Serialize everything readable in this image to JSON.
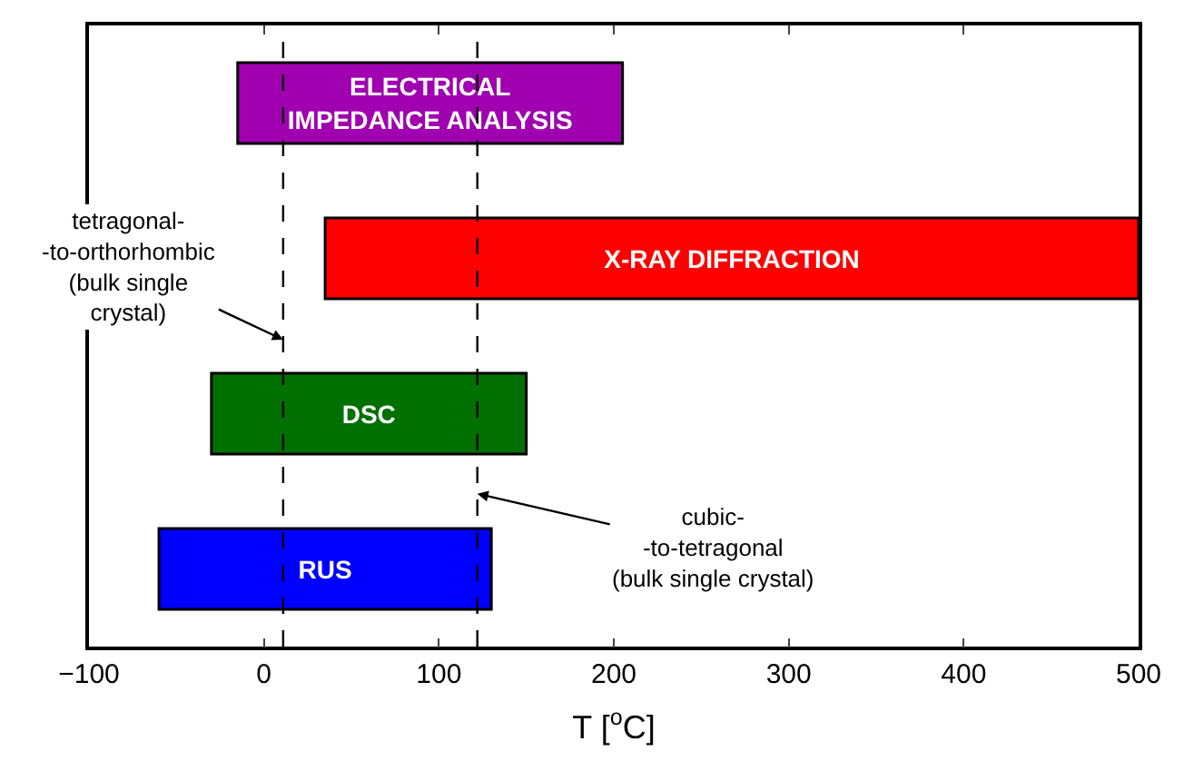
{
  "chart_data": {
    "type": "bar",
    "orientation": "horizontal",
    "xlabel": "T [$^{o}$C]",
    "categories": [
      "ELECTRICAL\nIMPEDANCE ANALYSIS",
      "X-RAY DIFFRACTION",
      "DSC",
      "RUS"
    ],
    "base": [
      -15,
      35,
      -30,
      -60
    ],
    "values": [
      220,
      465,
      180,
      190
    ],
    "colors": [
      "#a000b0",
      "#ff0000",
      "#007000",
      "#0000ff"
    ],
    "xlim": [
      -100,
      500
    ],
    "xticks": [
      -100,
      0,
      100,
      200,
      300,
      400,
      500
    ],
    "ref_lines": [
      {
        "axis": "x",
        "value": 11,
        "label": "tetragonal-\n-to-orthorhombic\n(bulk single\ncrystal)",
        "line_style": "dashed",
        "color": "#000000"
      },
      {
        "axis": "x",
        "value": 122,
        "label": "cubic-\n-to-tetragonal\n(bulk single crystal)",
        "line_style": "dashed",
        "color": "#000000"
      }
    ],
    "tick_labels": "x",
    "legend": false
  }
}
